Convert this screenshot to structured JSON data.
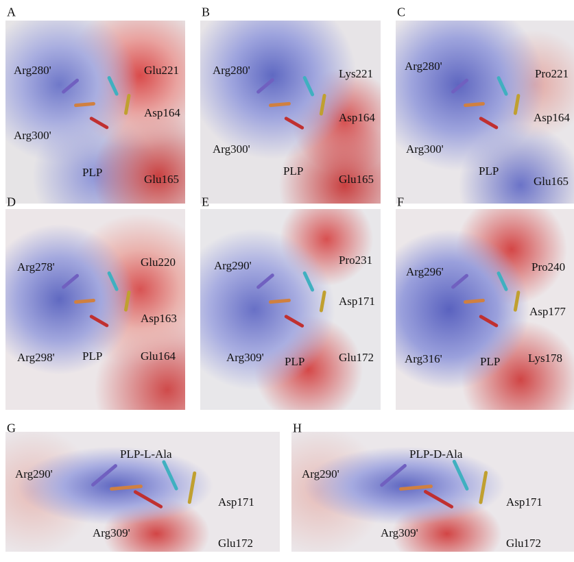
{
  "panels": [
    {
      "letter": "A",
      "labels": [
        "Arg280'",
        "Glu221",
        "Asp164",
        "Arg300'",
        "PLP",
        "Glu165"
      ]
    },
    {
      "letter": "B",
      "labels": [
        "Arg280'",
        "Lys221",
        "Asp164",
        "Arg300'",
        "PLP",
        "Glu165"
      ]
    },
    {
      "letter": "C",
      "labels": [
        "Arg280'",
        "Pro221",
        "Asp164",
        "Arg300'",
        "PLP",
        "Glu165"
      ]
    },
    {
      "letter": "D",
      "labels": [
        "Arg278'",
        "Glu220",
        "Asp163",
        "Arg298'",
        "PLP",
        "Glu164"
      ]
    },
    {
      "letter": "E",
      "labels": [
        "Arg290'",
        "Pro231",
        "Asp171",
        "Arg309'",
        "PLP",
        "Glu172"
      ]
    },
    {
      "letter": "F",
      "labels": [
        "Arg296'",
        "Pro240",
        "Asp177",
        "Arg316'",
        "PLP",
        "Lys178"
      ]
    },
    {
      "letter": "G",
      "labels": [
        "PLP-L-Ala",
        "Arg290'",
        "Asp171",
        "Arg309'",
        "Glu172"
      ]
    },
    {
      "letter": "H",
      "labels": [
        "PLP-D-Ala",
        "Arg290'",
        "Asp171",
        "Arg309'",
        "Glu172"
      ]
    }
  ]
}
